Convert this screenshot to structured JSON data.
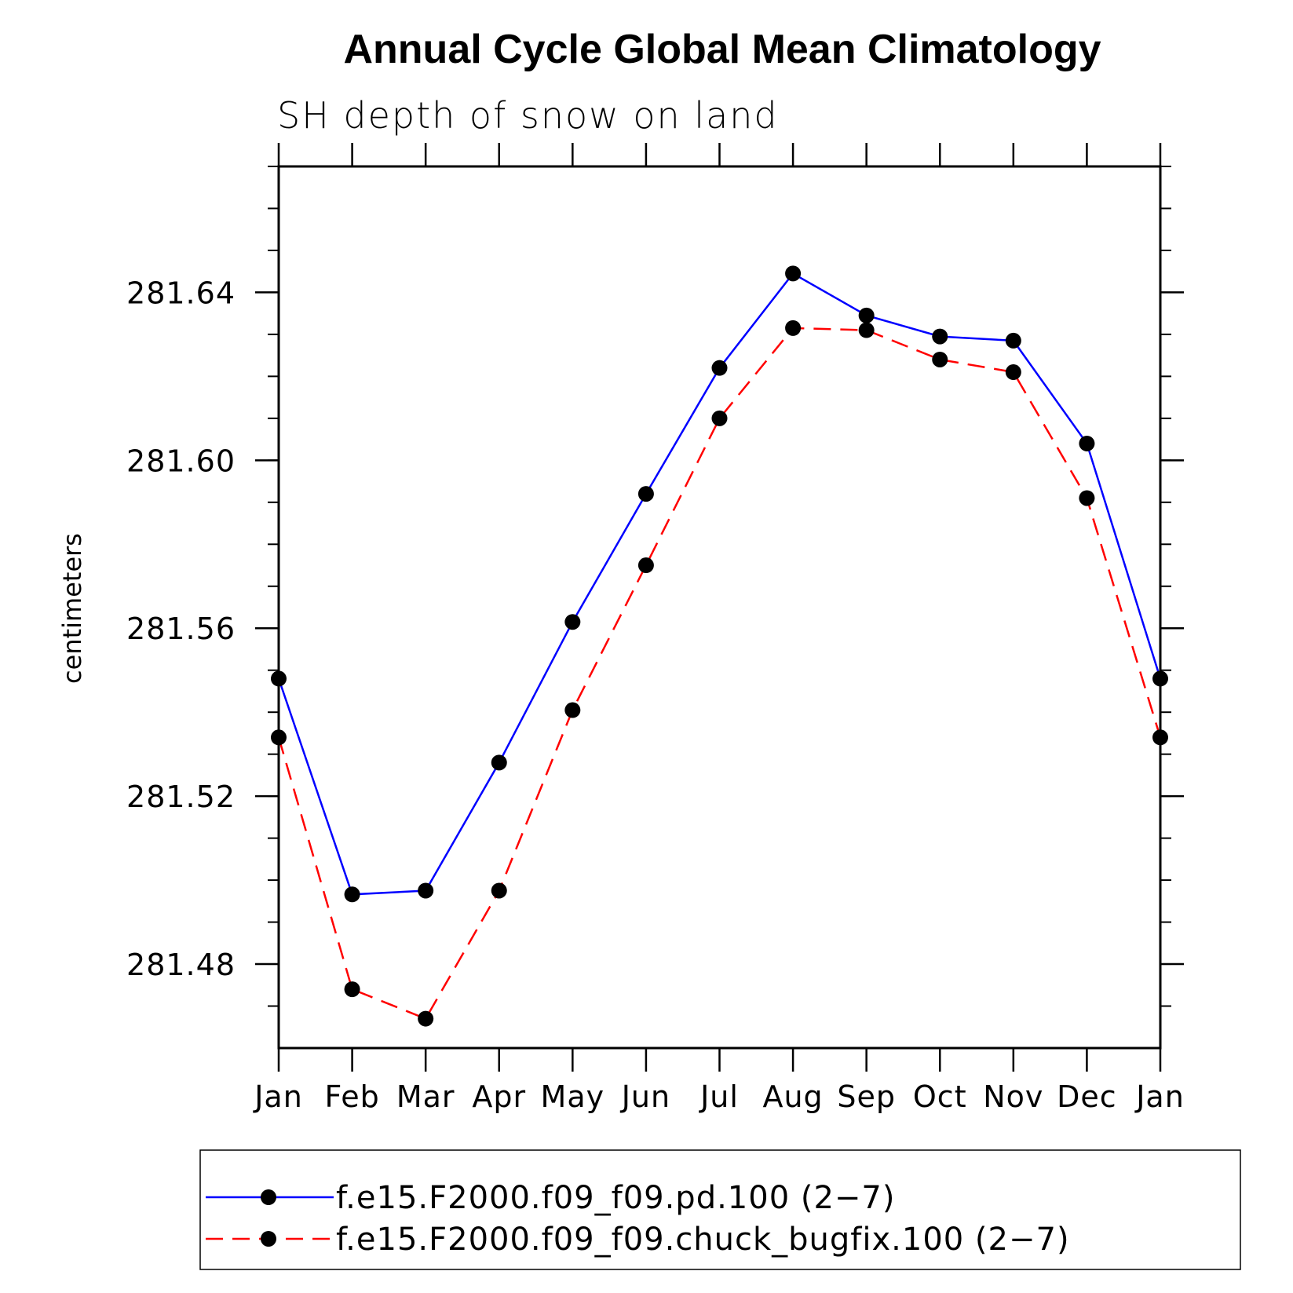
{
  "chart_data": {
    "type": "line",
    "title": "Annual Cycle Global Mean Climatology",
    "subtitle": "SH depth of snow on land",
    "xlabel": "",
    "ylabel": "centimeters",
    "categories": [
      "Jan",
      "Feb",
      "Mar",
      "Apr",
      "May",
      "Jun",
      "Jul",
      "Aug",
      "Sep",
      "Oct",
      "Nov",
      "Dec",
      "Jan"
    ],
    "ylim": [
      281.46,
      281.67
    ],
    "yticks": [
      "281.48",
      "281.52",
      "281.56",
      "281.60",
      "281.64"
    ],
    "grid": false,
    "legend_position": "bottom",
    "series": [
      {
        "name": "f.e15.F2000.f09_f09.pd.100 (2−7)",
        "color": "#0000ff",
        "style": "solid",
        "values": [
          281.548,
          281.4966,
          281.4975,
          281.528,
          281.5615,
          281.592,
          281.622,
          281.6445,
          281.6345,
          281.6295,
          281.6285,
          281.604,
          281.548
        ]
      },
      {
        "name": "f.e15.F2000.f09_f09.chuck_bugfix.100 (2−7)",
        "color": "#ff0000",
        "style": "dashed",
        "values": [
          281.534,
          281.474,
          281.467,
          281.4975,
          281.5405,
          281.575,
          281.61,
          281.6315,
          281.631,
          281.624,
          281.621,
          281.591,
          281.534
        ]
      }
    ]
  }
}
